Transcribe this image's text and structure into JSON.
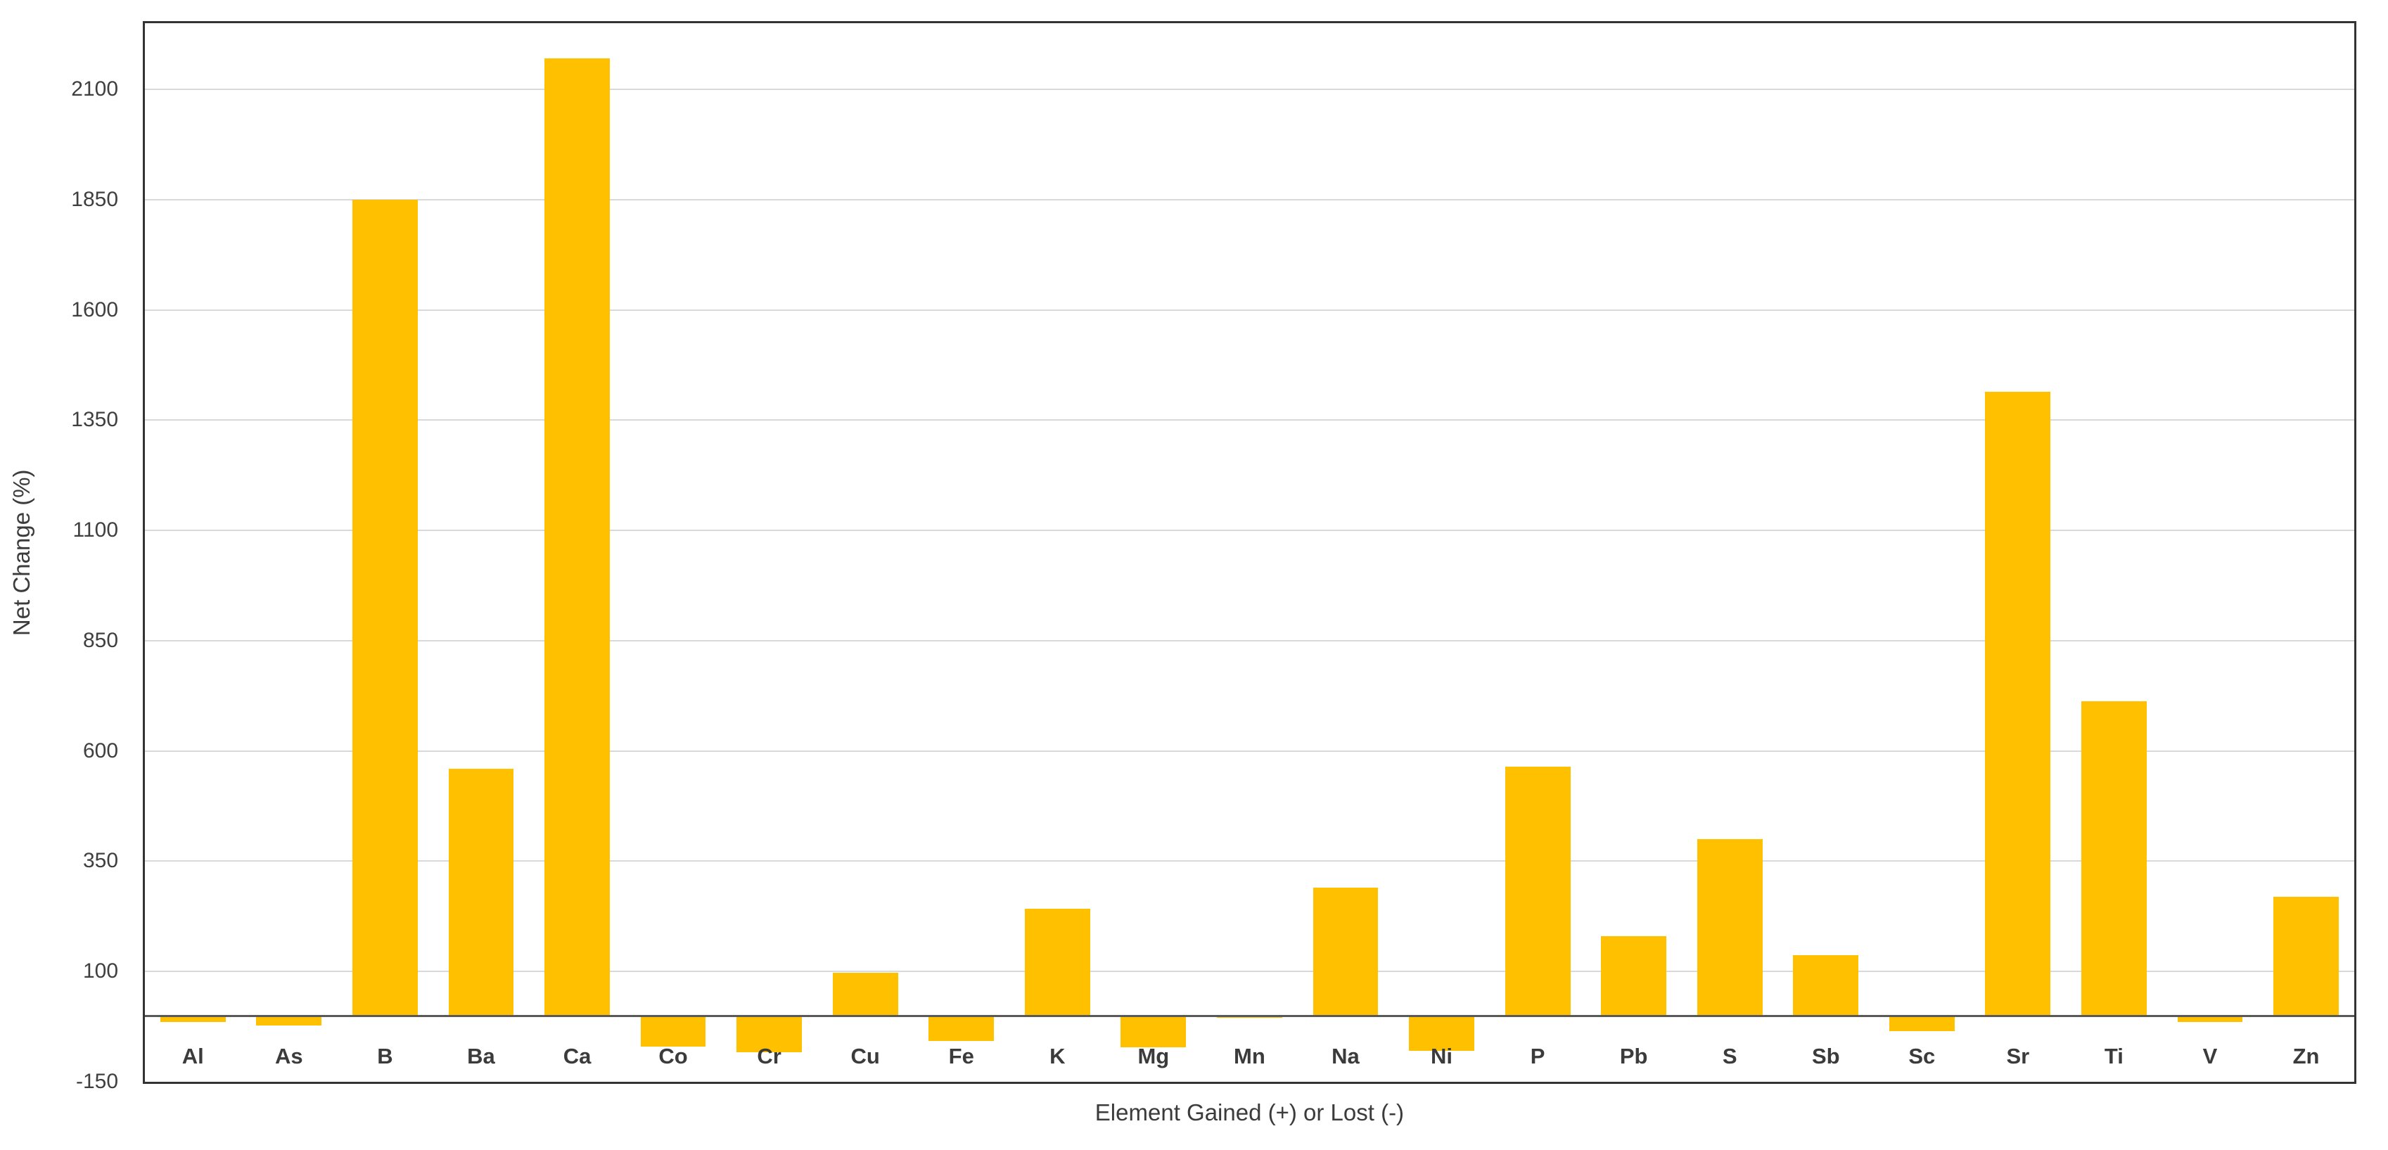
{
  "chart_data": {
    "type": "bar",
    "title": "",
    "xlabel": "Element Gained (+) or Lost (-)",
    "ylabel": "Net Change (%)",
    "categories": [
      "Al",
      "As",
      "B",
      "Ba",
      "Ca",
      "Co",
      "Cr",
      "Cu",
      "Fe",
      "K",
      "Mg",
      "Mn",
      "Na",
      "Ni",
      "P",
      "Pb",
      "S",
      "Sb",
      "Sc",
      "Sr",
      "Ti",
      "V",
      "Zn"
    ],
    "values": [
      -15,
      -22,
      1850,
      560,
      2170,
      -70,
      -83,
      97,
      -58,
      242,
      -72,
      -5,
      290,
      -80,
      565,
      180,
      400,
      137,
      -36,
      1414,
      713,
      -15,
      269
    ],
    "ylim": [
      -150,
      2250
    ],
    "yticks": [
      -150,
      100,
      350,
      600,
      850,
      1100,
      1350,
      1600,
      1850,
      2100
    ],
    "grid": "horizontal",
    "legend": "none",
    "bar_color": "#FFC000",
    "gridline_color": "#D9D9D9",
    "axis_line_color": "#595959",
    "frame_color": "#333333",
    "text_color": "#3B3B3B",
    "bar_width_fraction": 0.68
  }
}
